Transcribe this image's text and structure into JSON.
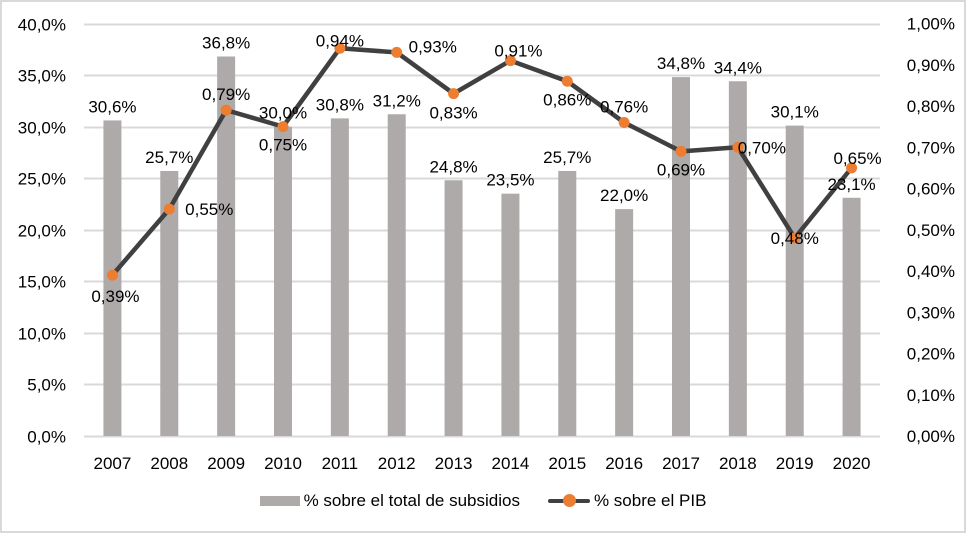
{
  "chart_data": {
    "type": "bar+line",
    "categories": [
      "2007",
      "2008",
      "2009",
      "2010",
      "2011",
      "2012",
      "2013",
      "2014",
      "2015",
      "2016",
      "2017",
      "2018",
      "2019",
      "2020"
    ],
    "series": [
      {
        "name": "% sobre el total de subsidios",
        "type": "bar",
        "axis": "left",
        "values": [
          30.6,
          25.7,
          36.8,
          30.0,
          30.8,
          31.2,
          24.8,
          23.5,
          25.7,
          22.0,
          34.8,
          34.4,
          30.1,
          23.1
        ],
        "labels": [
          "30,6%",
          "25,7%",
          "36,8%",
          "30,0%",
          "30,8%",
          "31,2%",
          "24,8%",
          "23,5%",
          "25,7%",
          "22,0%",
          "34,8%",
          "34,4%",
          "30,1%",
          "23,1%"
        ],
        "color": "#aeaaaa"
      },
      {
        "name": "% sobre el PIB",
        "type": "line",
        "axis": "right",
        "values": [
          0.39,
          0.55,
          0.79,
          0.75,
          0.94,
          0.93,
          0.83,
          0.91,
          0.86,
          0.76,
          0.69,
          0.7,
          0.48,
          0.65
        ],
        "labels": [
          "0,39%",
          "0,55%",
          "0,79%",
          "0,75%",
          "0,94%",
          "0,93%",
          "0,83%",
          "0,91%",
          "0,86%",
          "0,76%",
          "0,69%",
          "0,70%",
          "0,48%",
          "0,65%"
        ],
        "color": "#404040",
        "marker_color": "#ed7d31"
      }
    ],
    "y_left": {
      "range": [
        0,
        40
      ],
      "ticks": [
        "0,0%",
        "5,0%",
        "10,0%",
        "15,0%",
        "20,0%",
        "25,0%",
        "30,0%",
        "35,0%",
        "40,0%"
      ]
    },
    "y_right": {
      "range": [
        0,
        1.0
      ],
      "ticks": [
        "0,00%",
        "0,10%",
        "0,20%",
        "0,30%",
        "0,40%",
        "0,50%",
        "0,60%",
        "0,70%",
        "0,80%",
        "0,90%",
        "1,00%"
      ]
    },
    "grid": true,
    "legend_position": "bottom",
    "title": "",
    "xlabel": "",
    "ylabel": ""
  }
}
